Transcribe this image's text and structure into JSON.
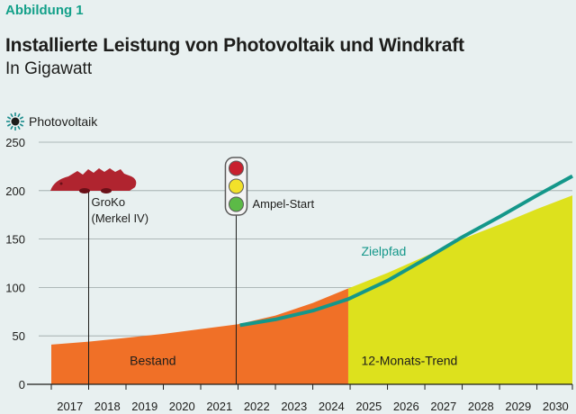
{
  "figure_label": "Abbildung 1",
  "title": "Installierte Leistung von Photovoltaik und Windkraft",
  "subtitle": "In Gigawatt",
  "chart_data": {
    "type": "area",
    "title": "Installierte Leistung von Photovoltaik und Windkraft",
    "subtitle": "In Gigawatt",
    "legend": {
      "label": "Photovoltaik",
      "icon": "sun-icon",
      "placement": "top-left"
    },
    "x_ticks": [
      "2017",
      "2018",
      "2019",
      "2020",
      "2021",
      "2022",
      "2023",
      "2024",
      "2025",
      "2026",
      "2027",
      "2028",
      "2029",
      "2030"
    ],
    "y_ticks": [
      0,
      50,
      100,
      150,
      200,
      250
    ],
    "ylim": [
      0,
      250
    ],
    "xlim": [
      2017,
      2030.95
    ],
    "grid": "horizontal",
    "colors": {
      "bestand": "#f07027",
      "trend": "#dde11d",
      "zielpfad": "#14978a",
      "background": "#e8f0f0"
    },
    "series": [
      {
        "name": "Bestand",
        "type": "area",
        "x": [
          2017.0,
          2018.0,
          2019.0,
          2020.0,
          2021.0,
          2022.0,
          2023.0,
          2024.0,
          2024.95
        ],
        "y": [
          41,
          44,
          48,
          52,
          57,
          62,
          71,
          84,
          99
        ]
      },
      {
        "name": "12-Monats-Trend",
        "type": "area",
        "x": [
          2024.95,
          2026.0,
          2027.0,
          2028.0,
          2029.0,
          2030.0,
          2030.95
        ],
        "y": [
          99,
          115,
          132,
          150,
          165,
          181,
          195
        ]
      },
      {
        "name": "Zielpfad",
        "type": "line",
        "x": [
          2022.05,
          2023.0,
          2024.0,
          2024.95,
          2026.0,
          2027.0,
          2028.0,
          2029.0,
          2030.0,
          2030.95
        ],
        "y": [
          61,
          67,
          76,
          88,
          107,
          129,
          152,
          173,
          195,
          215
        ]
      }
    ],
    "events": [
      {
        "x": 2018.0,
        "label_line1": "GroKo",
        "label_line2": "(Merkel IV)",
        "icon": "crocodile-icon"
      },
      {
        "x": 2021.95,
        "label_line1": "Ampel-Start",
        "label_line2": "",
        "icon": "traffic-light-icon"
      }
    ],
    "annotations": [
      {
        "text": "Bestand",
        "x": 2019.1,
        "y": 20,
        "color": "#1d1d1b"
      },
      {
        "text": "12-Monats-Trend",
        "x": 2025.3,
        "y": 20,
        "color": "#1d1d1b"
      },
      {
        "text": "Zielpfad",
        "x": 2025.3,
        "y": 133,
        "color": "#14978a"
      }
    ]
  }
}
